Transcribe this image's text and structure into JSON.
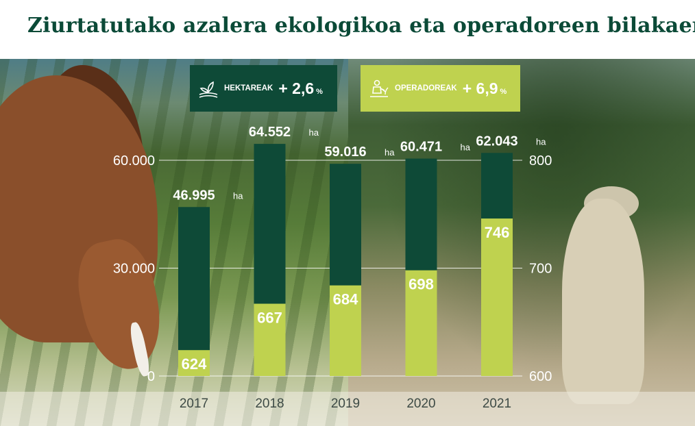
{
  "title": "Ziurtatutako azalera ekologikoa eta operadoreen bilakaera",
  "colors": {
    "title": "#0b4a37",
    "hectares_bar": "#0e4a37",
    "operators_bar": "#bfd24f",
    "text_light": "#ffffff"
  },
  "badges": {
    "hectares": {
      "icon": "field-plant-icon",
      "label": "HEKTAREAK",
      "value": "+ 2,6",
      "unit": "%"
    },
    "operators": {
      "icon": "farmer-icon",
      "label": "OPERADOREAK",
      "value": "+ 6,9",
      "unit": "%"
    }
  },
  "chart_data": {
    "type": "bar",
    "title": "Ziurtatutako azalera ekologikoa eta operadoreen bilakaera",
    "categories": [
      "2017",
      "2018",
      "2019",
      "2020",
      "2021"
    ],
    "series": [
      {
        "name": "HEKTAREAK",
        "axis": "left",
        "values": [
          46995,
          64552,
          59016,
          60471,
          62043
        ],
        "labels": [
          "46.995",
          "64.552",
          "59.016",
          "60.471",
          "62.043"
        ],
        "unit": "ha"
      },
      {
        "name": "OPERADOREAK",
        "axis": "right",
        "values": [
          624,
          667,
          684,
          698,
          746
        ],
        "labels": [
          "624",
          "667",
          "684",
          "698",
          "746"
        ]
      }
    ],
    "y_left": {
      "lim": [
        0,
        60000
      ],
      "ticks": [
        0,
        30000,
        60000
      ],
      "tick_labels": [
        "0",
        "30.000",
        "60.000"
      ]
    },
    "y_right": {
      "lim": [
        600,
        800
      ],
      "ticks": [
        600,
        700,
        800
      ],
      "tick_labels": [
        "600",
        "700",
        "800"
      ]
    },
    "grid": true,
    "legend": "top"
  }
}
